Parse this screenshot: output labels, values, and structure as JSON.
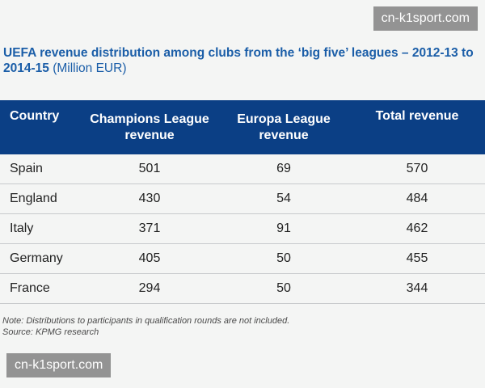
{
  "watermark": "cn-k1sport.com",
  "chart_data": {
    "type": "table",
    "title": "UEFA revenue distribution among clubs from the ‘big five’ leagues – 2012-13 to 2014-15",
    "unit": "(Million EUR)",
    "columns": [
      "Country",
      "Champions League revenue",
      "Europa League revenue",
      "Total revenue"
    ],
    "rows": [
      {
        "country": "Spain",
        "champions_league": 501,
        "europa_league": 69,
        "total": 570
      },
      {
        "country": "England",
        "champions_league": 430,
        "europa_league": 54,
        "total": 484
      },
      {
        "country": "Italy",
        "champions_league": 371,
        "europa_league": 91,
        "total": 462
      },
      {
        "country": "Germany",
        "champions_league": 405,
        "europa_league": 50,
        "total": 455
      },
      {
        "country": "France",
        "champions_league": 294,
        "europa_league": 50,
        "total": 344
      }
    ],
    "note": "Note: Distributions to participants in qualification rounds are not included.",
    "source": "Source: KPMG research"
  }
}
